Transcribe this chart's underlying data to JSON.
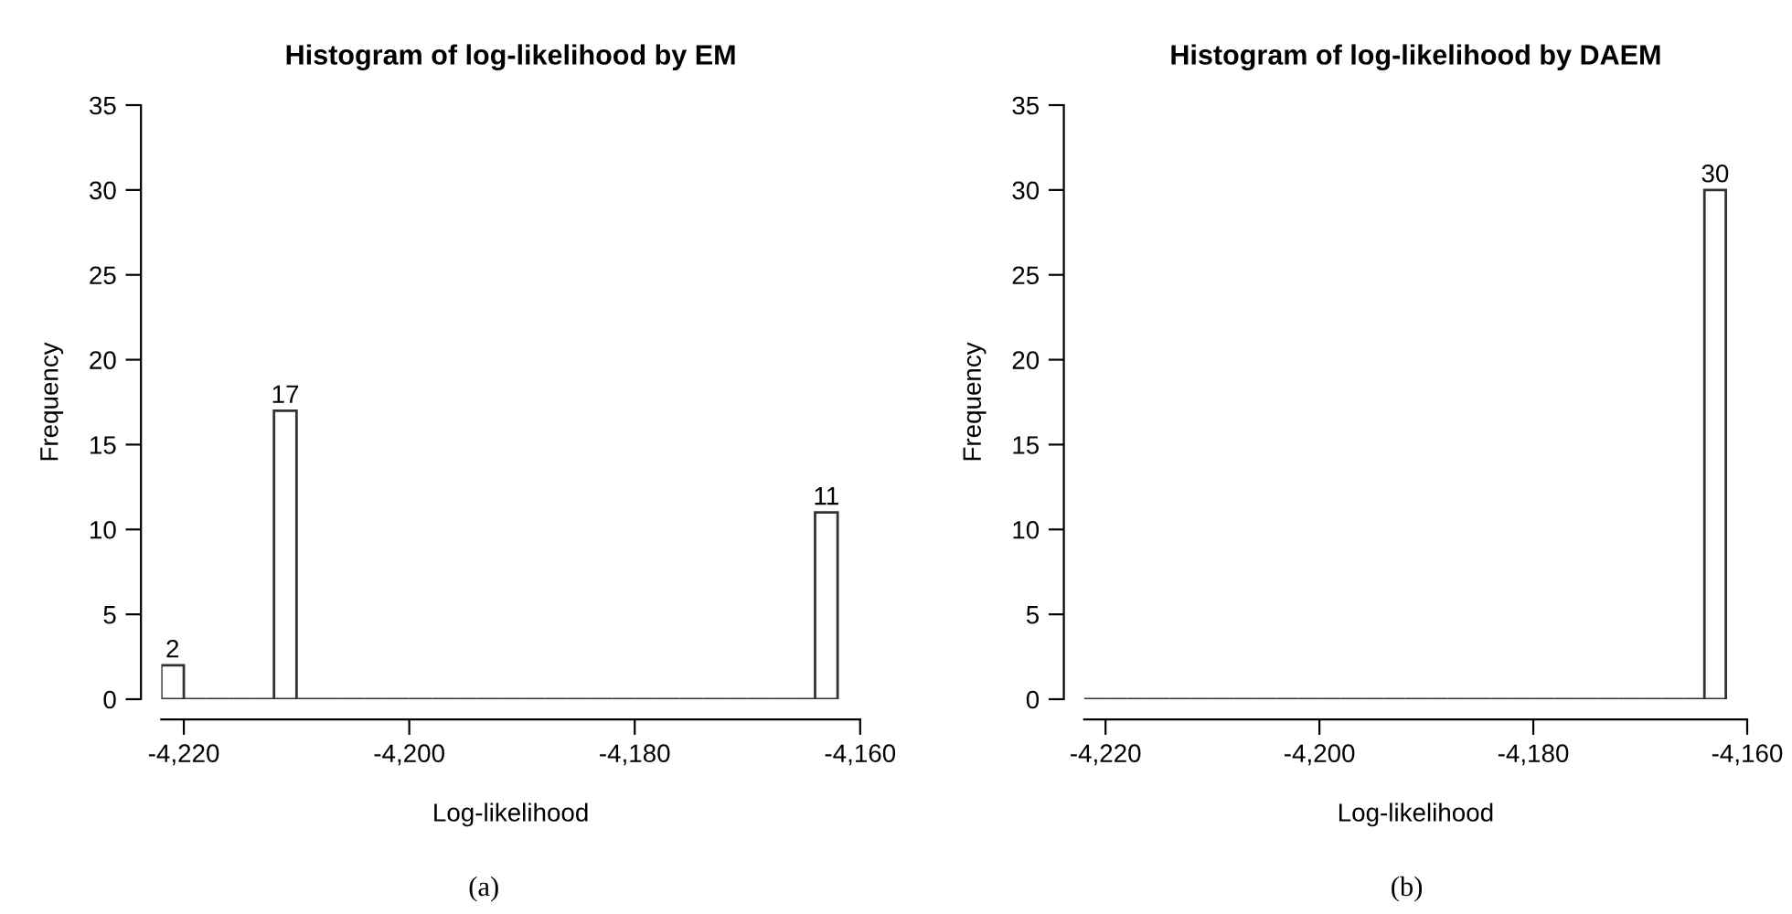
{
  "chart_data": [
    {
      "type": "histogram",
      "title": "Histogram of log-likelihood by EM",
      "xlabel": "Log-likelihood",
      "ylabel": "Frequency",
      "bins": [
        -4222,
        -4220,
        -4218,
        -4216,
        -4214,
        -4212,
        -4210,
        -4208,
        -4206,
        -4204,
        -4202,
        -4200,
        -4198,
        -4196,
        -4194,
        -4192,
        -4190,
        -4188,
        -4186,
        -4184,
        -4182,
        -4180,
        -4178,
        -4176,
        -4174,
        -4172,
        -4170,
        -4168,
        -4166,
        -4164,
        -4162
      ],
      "values": [
        2,
        0,
        0,
        0,
        0,
        17,
        0,
        0,
        0,
        0,
        0,
        0,
        0,
        0,
        0,
        0,
        0,
        0,
        0,
        0,
        0,
        0,
        0,
        0,
        0,
        0,
        0,
        0,
        0,
        11
      ],
      "value_labels": [
        "2",
        null,
        null,
        null,
        null,
        "17",
        null,
        null,
        null,
        null,
        null,
        null,
        null,
        null,
        null,
        null,
        null,
        null,
        null,
        null,
        null,
        null,
        null,
        null,
        null,
        null,
        null,
        null,
        null,
        "11"
      ],
      "color": "#333333",
      "xlim": [
        -4222,
        -4160
      ],
      "ylim": [
        0,
        35
      ],
      "xticks": [
        {
          "value": -4220,
          "label": "-4,220"
        },
        {
          "value": -4200,
          "label": "-4,200"
        },
        {
          "value": -4180,
          "label": "-4,180"
        },
        {
          "value": -4160,
          "label": "-4,160"
        }
      ],
      "yticks": [
        0,
        5,
        10,
        15,
        20,
        25,
        30,
        35
      ],
      "annotations": [
        "(a)"
      ]
    },
    {
      "type": "histogram",
      "title": "Histogram of log-likelihood by DAEM",
      "xlabel": "Log-likelihood",
      "ylabel": "Frequency",
      "bins": [
        -4222,
        -4220,
        -4218,
        -4216,
        -4214,
        -4212,
        -4210,
        -4208,
        -4206,
        -4204,
        -4202,
        -4200,
        -4198,
        -4196,
        -4194,
        -4192,
        -4190,
        -4188,
        -4186,
        -4184,
        -4182,
        -4180,
        -4178,
        -4176,
        -4174,
        -4172,
        -4170,
        -4168,
        -4166,
        -4164,
        -4162
      ],
      "values": [
        0,
        0,
        0,
        0,
        0,
        0,
        0,
        0,
        0,
        0,
        0,
        0,
        0,
        0,
        0,
        0,
        0,
        0,
        0,
        0,
        0,
        0,
        0,
        0,
        0,
        0,
        0,
        0,
        0,
        30
      ],
      "value_labels": [
        null,
        null,
        null,
        null,
        null,
        null,
        null,
        null,
        null,
        null,
        null,
        null,
        null,
        null,
        null,
        null,
        null,
        null,
        null,
        null,
        null,
        null,
        null,
        null,
        null,
        null,
        null,
        null,
        null,
        "30"
      ],
      "color": "#333333",
      "xlim": [
        -4222,
        -4160
      ],
      "ylim": [
        0,
        35
      ],
      "xticks": [
        {
          "value": -4220,
          "label": "-4,220"
        },
        {
          "value": -4200,
          "label": "-4,200"
        },
        {
          "value": -4180,
          "label": "-4,180"
        },
        {
          "value": -4160,
          "label": "-4,160"
        }
      ],
      "yticks": [
        0,
        5,
        10,
        15,
        20,
        25,
        30,
        35
      ],
      "annotations": [
        "(b)"
      ]
    }
  ]
}
